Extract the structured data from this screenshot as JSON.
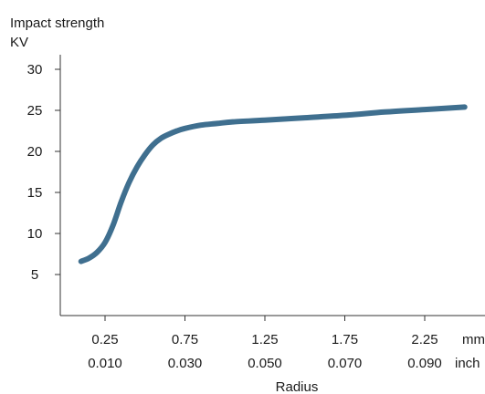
{
  "chart_data": {
    "type": "line",
    "ylabel_line1": "Impact strength",
    "ylabel_line2": "KV",
    "xlabel": "Radius",
    "xunit_primary": "mm",
    "xunit_secondary": "inch",
    "xlim": [
      0.05,
      2.55
    ],
    "ylim": [
      0,
      32
    ],
    "y_ticks": [
      5,
      10,
      15,
      20,
      25,
      30
    ],
    "y_tick_labels": [
      "5",
      "10",
      "15",
      "20",
      "25",
      "30"
    ],
    "x_ticks": [
      0.25,
      0.75,
      1.25,
      1.75,
      2.25
    ],
    "x_tick_labels_mm": [
      "0.25",
      "0.75",
      "1.25",
      "1.75",
      "2.25"
    ],
    "x_tick_labels_inch": [
      "0.010",
      "0.030",
      "0.050",
      "0.070",
      "0.090"
    ],
    "grid": false,
    "line_color": "#3f6f8f",
    "series": [
      {
        "x": [
          0.1,
          0.15,
          0.2,
          0.25,
          0.3,
          0.35,
          0.4,
          0.45,
          0.5,
          0.55,
          0.6,
          0.65,
          0.7,
          0.75,
          0.85,
          0.95,
          1.05,
          1.25,
          1.5,
          1.75,
          2.0,
          2.25,
          2.5
        ],
        "y": [
          6.6,
          7.0,
          7.7,
          8.9,
          11.0,
          13.8,
          16.2,
          18.1,
          19.6,
          20.8,
          21.6,
          22.1,
          22.5,
          22.8,
          23.2,
          23.4,
          23.6,
          23.8,
          24.1,
          24.4,
          24.8,
          25.1,
          25.4
        ]
      }
    ]
  }
}
